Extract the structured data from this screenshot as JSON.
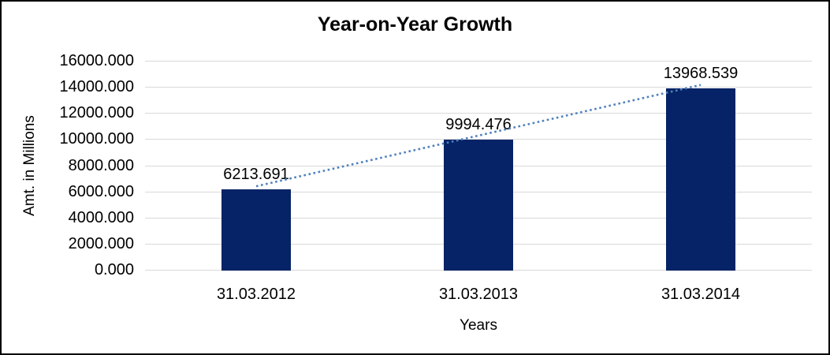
{
  "window": {
    "background": "#ffffff",
    "border_color": "#000000"
  },
  "chart_data": {
    "type": "bar",
    "title": "Year-on-Year Growth",
    "categories": [
      "31.03.2012",
      "31.03.2013",
      "31.03.2014"
    ],
    "values": [
      6213.691,
      9994.476,
      13968.539
    ],
    "data_labels": [
      "6213.691",
      "9994.476",
      "13968.539"
    ],
    "xlabel": "Years",
    "ylabel": "Amt. in Millions",
    "ylim": [
      0,
      16000
    ],
    "ytick_step": 2000,
    "ytick_labels": [
      "0.000",
      "2000.000",
      "4000.000",
      "6000.000",
      "8000.000",
      "10000.000",
      "12000.000",
      "14000.000",
      "16000.000"
    ],
    "grid": true,
    "legend": "none",
    "bar_color": "#052366",
    "gridline_color": "#d9d9d9",
    "text_color": "#000000",
    "trendline": {
      "type": "linear",
      "style": "dotted",
      "color": "#4f81bd",
      "from_value": 6213.691,
      "to_value": 13968.539
    }
  }
}
